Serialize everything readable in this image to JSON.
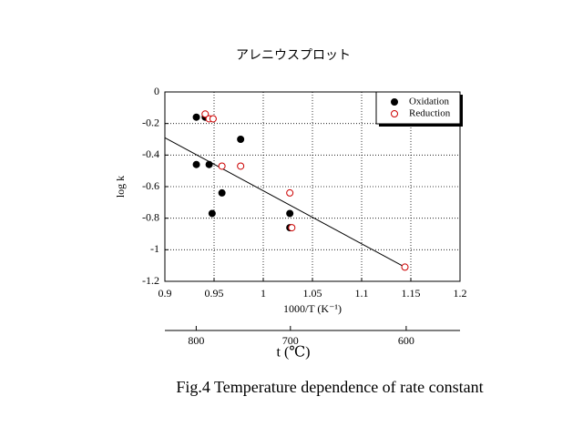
{
  "chart_data": {
    "type": "scatter",
    "title": "アレニウスプロット",
    "caption": "Fig.4 Temperature dependence of rate constant",
    "xlabel": "1000/T (K⁻¹)",
    "ylabel": "log k",
    "x2label": "t (℃)",
    "xlim": [
      0.9,
      1.2
    ],
    "xticks": [
      0.9,
      0.95,
      1,
      1.05,
      1.1,
      1.15,
      1.2
    ],
    "ylim": [
      -1.2,
      0
    ],
    "yticks": [
      0,
      -0.2,
      -0.4,
      -0.6,
      -0.8,
      -1,
      -1.2
    ],
    "x2ticks": [
      800,
      700,
      600
    ],
    "grid": true,
    "legend": "upper right",
    "series": [
      {
        "name": "Oxidation",
        "color": "#000000",
        "x": [
          0.932,
          0.941,
          0.932,
          0.945,
          0.977,
          0.958,
          0.948,
          1.027,
          1.027
        ],
        "values": [
          -0.16,
          -0.16,
          -0.46,
          -0.46,
          -0.3,
          -0.64,
          -0.77,
          -0.77,
          -0.86
        ]
      },
      {
        "name": "Reduction",
        "color": "#cc0000",
        "x": [
          0.941,
          0.945,
          0.949,
          0.958,
          0.977,
          1.027,
          1.029,
          1.144
        ],
        "values": [
          -0.14,
          -0.17,
          -0.17,
          -0.47,
          -0.47,
          -0.64,
          -0.86,
          -1.11
        ]
      }
    ],
    "fit_line": {
      "x": [
        0.9,
        1.144
      ],
      "values": [
        -0.29,
        -1.11
      ]
    }
  }
}
